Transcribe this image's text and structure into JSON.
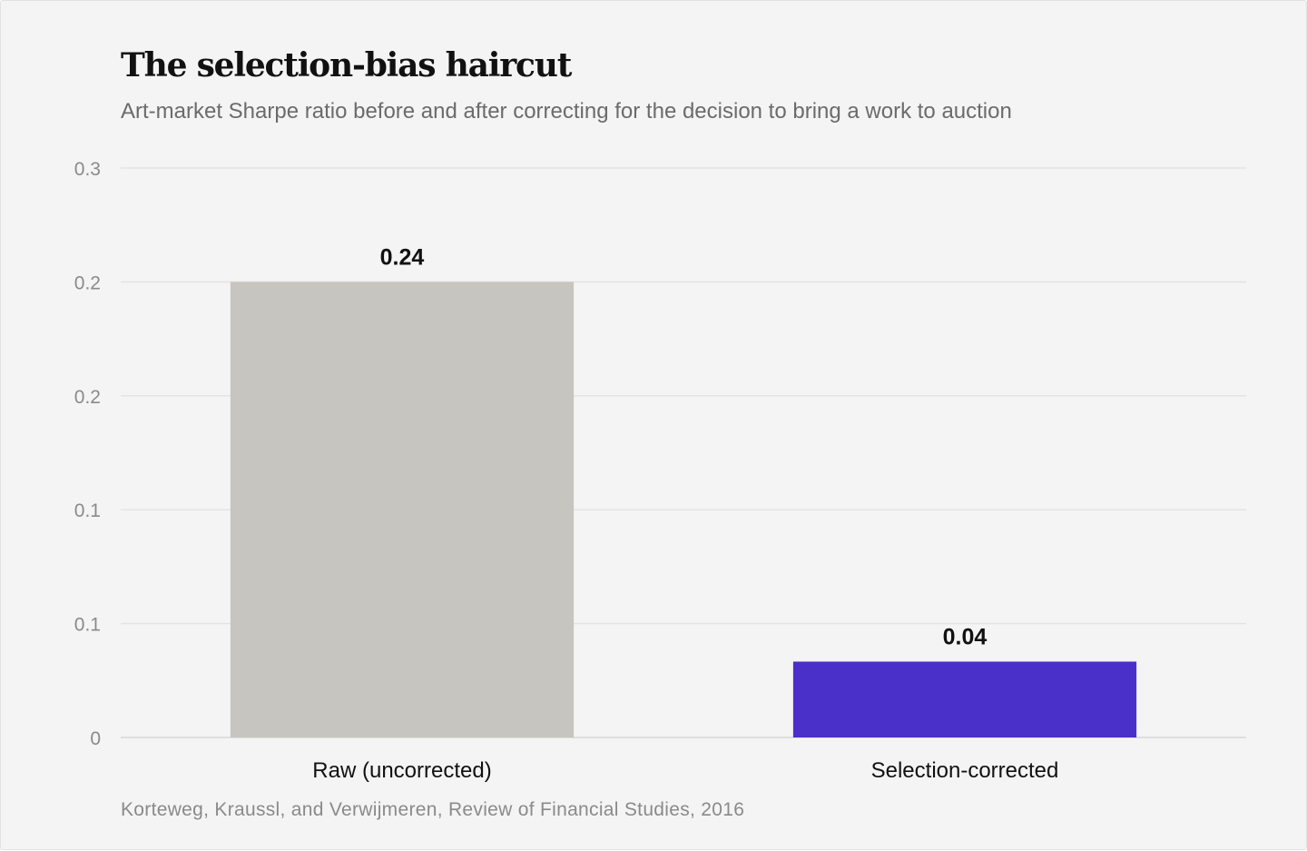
{
  "header": {
    "title": "The selection-bias haircut",
    "subtitle": "Art-market Sharpe ratio before and after correcting for the decision to bring a work to auction"
  },
  "footer": {
    "source": "Korteweg, Kraussl, and Verwijmeren, Review of Financial Studies, 2016"
  },
  "chart_data": {
    "type": "bar",
    "categories": [
      "Raw (uncorrected)",
      "Selection-corrected"
    ],
    "values": [
      0.24,
      0.04
    ],
    "value_labels": [
      "0.24",
      "0.04"
    ],
    "colors": [
      "#c6c5bf",
      "#4b2fc9"
    ],
    "ylim": [
      0,
      0.25
    ],
    "y_ticks": [
      0,
      0.05,
      0.1,
      0.15,
      0.2,
      0.25
    ],
    "y_tick_labels": [
      "0",
      "0.1",
      "0.1",
      "0.2",
      "0.2",
      "0.3"
    ],
    "grid": true,
    "legend": "none"
  }
}
